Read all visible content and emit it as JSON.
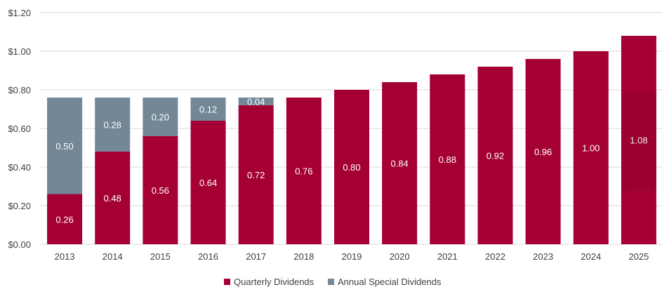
{
  "chart_data": {
    "type": "bar",
    "stacked": true,
    "title": "",
    "xlabel": "",
    "ylabel": "",
    "categories": [
      "2013",
      "2014",
      "2015",
      "2016",
      "2017",
      "2018",
      "2019",
      "2020",
      "2021",
      "2022",
      "2023",
      "2024",
      "2025"
    ],
    "series": [
      {
        "name": "Quarterly Dividends",
        "color": "#A50034",
        "values": [
          0.26,
          0.48,
          0.56,
          0.64,
          0.72,
          0.76,
          0.8,
          0.84,
          0.88,
          0.92,
          0.96,
          1.0,
          1.08
        ],
        "labels": [
          "0.26",
          "0.48",
          "0.56",
          "0.64",
          "0.72",
          "0.76",
          "0.80",
          "0.84",
          "0.88",
          "0.92",
          "0.96",
          "1.00",
          "1.08"
        ]
      },
      {
        "name": "Annual Special Dividends",
        "color": "#738796",
        "values": [
          0.5,
          0.28,
          0.2,
          0.12,
          0.04,
          0,
          0,
          0,
          0,
          0,
          0,
          0,
          0
        ],
        "labels": [
          "0.50",
          "0.28",
          "0.20",
          "0.12",
          "0.04",
          "",
          "",
          "",
          "",
          "",
          "",
          "",
          ""
        ]
      }
    ],
    "ylim": [
      0,
      1.2
    ],
    "yticks": [
      0,
      0.2,
      0.4,
      0.6,
      0.8,
      1.0,
      1.2
    ],
    "ytick_labels": [
      "$0.00",
      "$0.20",
      "$0.40",
      "$0.60",
      "$0.80",
      "$1.00",
      "$1.20"
    ],
    "grid": true,
    "legend": "bottom",
    "highlight": {
      "category": "2025",
      "style": "dashed box"
    }
  }
}
